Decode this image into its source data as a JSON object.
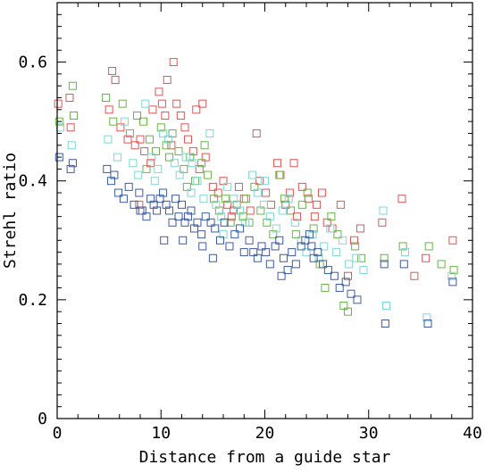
{
  "chart_data": {
    "type": "scatter",
    "title": "",
    "xlabel": "Distance from a guide star",
    "ylabel": "Strehl ratio",
    "xlim": [
      0,
      40
    ],
    "ylim": [
      0,
      0.7
    ],
    "x_ticks": [
      0,
      10,
      20,
      30,
      40
    ],
    "y_ticks": [
      0,
      0.2,
      0.4,
      0.6
    ],
    "x_tick_labels": [
      "0",
      "10",
      "20",
      "30",
      "40"
    ],
    "y_tick_labels": [
      "0",
      "0.2",
      "0.4",
      "0.6"
    ],
    "grid": false,
    "marker": "open-square",
    "series": [
      {
        "color": "#e05555",
        "points": [
          [
            0.1,
            0.53
          ],
          [
            1.2,
            0.54
          ],
          [
            1.3,
            0.49
          ],
          [
            5.3,
            0.585
          ],
          [
            5.6,
            0.57
          ],
          [
            5.0,
            0.52
          ],
          [
            6.1,
            0.49
          ],
          [
            6.8,
            0.47
          ],
          [
            7.5,
            0.46
          ],
          [
            8.0,
            0.47
          ],
          [
            8.4,
            0.45
          ],
          [
            9.2,
            0.52
          ],
          [
            9.8,
            0.55
          ],
          [
            10.1,
            0.53
          ],
          [
            10.4,
            0.51
          ],
          [
            10.6,
            0.57
          ],
          [
            11.2,
            0.6
          ],
          [
            11.5,
            0.53
          ],
          [
            11.9,
            0.51
          ],
          [
            12.3,
            0.49
          ],
          [
            12.6,
            0.47
          ],
          [
            13.1,
            0.45
          ],
          [
            13.4,
            0.52
          ],
          [
            14.0,
            0.53
          ],
          [
            14.3,
            0.44
          ],
          [
            15.0,
            0.39
          ],
          [
            15.5,
            0.38
          ],
          [
            16.0,
            0.4
          ],
          [
            16.4,
            0.36
          ],
          [
            17.0,
            0.35
          ],
          [
            17.5,
            0.39
          ],
          [
            18.0,
            0.37
          ],
          [
            18.6,
            0.35
          ],
          [
            19.2,
            0.48
          ],
          [
            19.5,
            0.4
          ],
          [
            20.1,
            0.38
          ],
          [
            20.6,
            0.36
          ],
          [
            21.2,
            0.43
          ],
          [
            21.5,
            0.41
          ],
          [
            22.0,
            0.36
          ],
          [
            22.4,
            0.38
          ],
          [
            23.1,
            0.34
          ],
          [
            23.6,
            0.39
          ],
          [
            24.2,
            0.37
          ],
          [
            24.8,
            0.34
          ],
          [
            25.5,
            0.38
          ],
          [
            26.0,
            0.33
          ],
          [
            26.5,
            0.32
          ],
          [
            27.3,
            0.36
          ],
          [
            28.0,
            0.24
          ],
          [
            28.6,
            0.3
          ],
          [
            29.2,
            0.32
          ],
          [
            31.3,
            0.33
          ],
          [
            33.2,
            0.37
          ],
          [
            34.4,
            0.24
          ],
          [
            35.5,
            0.27
          ],
          [
            38.1,
            0.3
          ],
          [
            13.7,
            0.42
          ],
          [
            9.0,
            0.43
          ],
          [
            11.0,
            0.46
          ],
          [
            7.9,
            0.36
          ],
          [
            16.8,
            0.34
          ],
          [
            22.8,
            0.43
          ],
          [
            25.0,
            0.36
          ]
        ]
      },
      {
        "color": "#6bb34a",
        "points": [
          [
            0.2,
            0.5
          ],
          [
            1.5,
            0.56
          ],
          [
            1.6,
            0.51
          ],
          [
            4.7,
            0.54
          ],
          [
            5.4,
            0.5
          ],
          [
            6.3,
            0.53
          ],
          [
            7.0,
            0.48
          ],
          [
            7.7,
            0.51
          ],
          [
            8.3,
            0.5
          ],
          [
            8.9,
            0.47
          ],
          [
            9.5,
            0.45
          ],
          [
            10.0,
            0.49
          ],
          [
            10.5,
            0.46
          ],
          [
            11.1,
            0.48
          ],
          [
            11.7,
            0.45
          ],
          [
            12.2,
            0.42
          ],
          [
            12.8,
            0.44
          ],
          [
            13.3,
            0.4
          ],
          [
            13.9,
            0.43
          ],
          [
            14.5,
            0.41
          ],
          [
            15.1,
            0.37
          ],
          [
            15.6,
            0.35
          ],
          [
            16.2,
            0.37
          ],
          [
            16.7,
            0.33
          ],
          [
            17.3,
            0.36
          ],
          [
            17.9,
            0.34
          ],
          [
            18.5,
            0.33
          ],
          [
            19.0,
            0.39
          ],
          [
            19.6,
            0.35
          ],
          [
            20.2,
            0.33
          ],
          [
            20.8,
            0.31
          ],
          [
            21.4,
            0.41
          ],
          [
            21.9,
            0.37
          ],
          [
            22.5,
            0.35
          ],
          [
            23.0,
            0.31
          ],
          [
            23.6,
            0.36
          ],
          [
            24.1,
            0.38
          ],
          [
            24.7,
            0.32
          ],
          [
            25.3,
            0.26
          ],
          [
            25.8,
            0.22
          ],
          [
            26.4,
            0.34
          ],
          [
            27.0,
            0.31
          ],
          [
            27.6,
            0.19
          ],
          [
            28.0,
            0.18
          ],
          [
            28.7,
            0.29
          ],
          [
            29.3,
            0.27
          ],
          [
            31.5,
            0.27
          ],
          [
            33.3,
            0.29
          ],
          [
            35.8,
            0.29
          ],
          [
            37.0,
            0.26
          ],
          [
            38.2,
            0.25
          ],
          [
            14.2,
            0.46
          ],
          [
            8.6,
            0.42
          ],
          [
            10.8,
            0.44
          ],
          [
            12.5,
            0.39
          ],
          [
            18.2,
            0.37
          ]
        ]
      },
      {
        "color": "#7fd6d6",
        "points": [
          [
            0.3,
            0.49
          ],
          [
            1.4,
            0.46
          ],
          [
            4.9,
            0.47
          ],
          [
            5.8,
            0.44
          ],
          [
            6.5,
            0.5
          ],
          [
            7.3,
            0.43
          ],
          [
            7.8,
            0.41
          ],
          [
            8.5,
            0.53
          ],
          [
            9.1,
            0.44
          ],
          [
            9.7,
            0.42
          ],
          [
            10.2,
            0.48
          ],
          [
            10.7,
            0.47
          ],
          [
            11.3,
            0.43
          ],
          [
            11.8,
            0.41
          ],
          [
            12.4,
            0.44
          ],
          [
            12.9,
            0.38
          ],
          [
            13.5,
            0.4
          ],
          [
            14.1,
            0.37
          ],
          [
            14.7,
            0.48
          ],
          [
            15.3,
            0.36
          ],
          [
            15.8,
            0.34
          ],
          [
            16.4,
            0.39
          ],
          [
            17.0,
            0.37
          ],
          [
            17.6,
            0.35
          ],
          [
            18.1,
            0.33
          ],
          [
            18.8,
            0.41
          ],
          [
            19.3,
            0.38
          ],
          [
            19.9,
            0.36
          ],
          [
            20.5,
            0.34
          ],
          [
            21.1,
            0.32
          ],
          [
            21.7,
            0.35
          ],
          [
            22.3,
            0.37
          ],
          [
            22.9,
            0.33
          ],
          [
            23.5,
            0.3
          ],
          [
            24.0,
            0.28
          ],
          [
            24.6,
            0.31
          ],
          [
            25.2,
            0.27
          ],
          [
            25.7,
            0.29
          ],
          [
            26.3,
            0.32
          ],
          [
            26.9,
            0.28
          ],
          [
            27.5,
            0.3
          ],
          [
            28.1,
            0.26
          ],
          [
            28.8,
            0.27
          ],
          [
            29.5,
            0.25
          ],
          [
            31.4,
            0.35
          ],
          [
            31.7,
            0.19
          ],
          [
            33.5,
            0.28
          ],
          [
            35.6,
            0.17
          ],
          [
            38.0,
            0.24
          ],
          [
            13.0,
            0.43
          ],
          [
            9.4,
            0.4
          ],
          [
            16.0,
            0.31
          ],
          [
            20.0,
            0.4
          ]
        ]
      },
      {
        "color": "#3b5ba8",
        "points": [
          [
            0.2,
            0.44
          ],
          [
            1.3,
            0.42
          ],
          [
            1.5,
            0.43
          ],
          [
            4.8,
            0.42
          ],
          [
            5.2,
            0.4
          ],
          [
            5.5,
            0.41
          ],
          [
            5.9,
            0.38
          ],
          [
            6.4,
            0.37
          ],
          [
            6.9,
            0.39
          ],
          [
            7.4,
            0.36
          ],
          [
            7.9,
            0.38
          ],
          [
            8.2,
            0.35
          ],
          [
            8.6,
            0.34
          ],
          [
            9.0,
            0.37
          ],
          [
            9.3,
            0.36
          ],
          [
            9.6,
            0.35
          ],
          [
            9.9,
            0.37
          ],
          [
            10.2,
            0.38
          ],
          [
            10.5,
            0.36
          ],
          [
            10.8,
            0.35
          ],
          [
            11.1,
            0.33
          ],
          [
            11.4,
            0.37
          ],
          [
            11.7,
            0.34
          ],
          [
            12.0,
            0.36
          ],
          [
            12.3,
            0.33
          ],
          [
            12.6,
            0.34
          ],
          [
            12.9,
            0.35
          ],
          [
            13.2,
            0.32
          ],
          [
            13.5,
            0.33
          ],
          [
            13.9,
            0.31
          ],
          [
            14.3,
            0.34
          ],
          [
            14.8,
            0.33
          ],
          [
            15.2,
            0.32
          ],
          [
            15.7,
            0.3
          ],
          [
            16.1,
            0.33
          ],
          [
            16.6,
            0.29
          ],
          [
            17.1,
            0.31
          ],
          [
            17.6,
            0.32
          ],
          [
            18.0,
            0.28
          ],
          [
            18.5,
            0.3
          ],
          [
            18.9,
            0.28
          ],
          [
            19.3,
            0.27
          ],
          [
            19.7,
            0.29
          ],
          [
            20.1,
            0.28
          ],
          [
            20.5,
            0.26
          ],
          [
            21.0,
            0.29
          ],
          [
            21.4,
            0.3
          ],
          [
            21.8,
            0.27
          ],
          [
            22.2,
            0.25
          ],
          [
            22.6,
            0.28
          ],
          [
            23.0,
            0.26
          ],
          [
            23.5,
            0.29
          ],
          [
            23.9,
            0.3
          ],
          [
            24.3,
            0.31
          ],
          [
            24.7,
            0.27
          ],
          [
            25.1,
            0.28
          ],
          [
            25.6,
            0.26
          ],
          [
            26.1,
            0.25
          ],
          [
            26.7,
            0.24
          ],
          [
            27.2,
            0.22
          ],
          [
            27.8,
            0.23
          ],
          [
            28.3,
            0.21
          ],
          [
            28.9,
            0.2
          ],
          [
            31.5,
            0.26
          ],
          [
            31.6,
            0.16
          ],
          [
            33.4,
            0.26
          ],
          [
            35.7,
            0.16
          ],
          [
            38.1,
            0.23
          ],
          [
            8.0,
            0.35
          ],
          [
            10.3,
            0.3
          ],
          [
            12.1,
            0.3
          ],
          [
            14.0,
            0.29
          ],
          [
            15.0,
            0.27
          ],
          [
            21.6,
            0.24
          ],
          [
            24.5,
            0.29
          ]
        ]
      }
    ]
  }
}
